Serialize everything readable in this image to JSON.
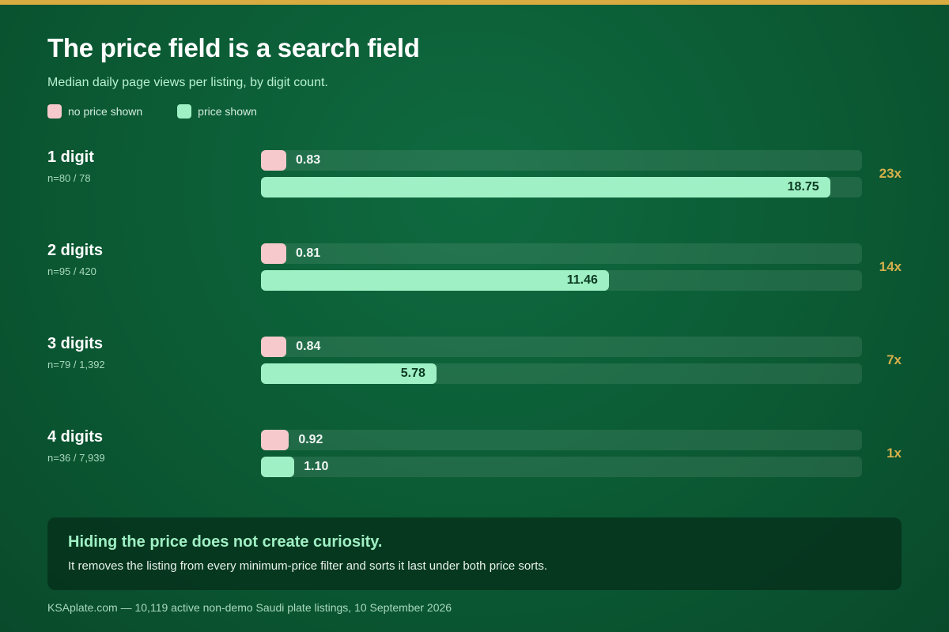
{
  "title": "The price field is a search field",
  "subtitle": "Median daily page views per listing, by digit count.",
  "legend": [
    {
      "label": "no price shown",
      "color": "#f6c9cd"
    },
    {
      "label": "price shown",
      "color": "#9ff0c4"
    }
  ],
  "chart_data": {
    "type": "bar",
    "orientation": "horizontal",
    "title": "The price field is a search field",
    "subtitle": "Median daily page views per listing, by digit count.",
    "categories": [
      "1 digit",
      "2 digits",
      "3 digits",
      "4 digits"
    ],
    "sample_sizes": [
      "n=80 / 78",
      "n=95 / 420",
      "n=79 / 1,392",
      "n=36 / 7,939"
    ],
    "series": [
      {
        "name": "no price shown",
        "color": "#f6c9cd",
        "values": [
          0.83,
          0.81,
          0.84,
          0.92
        ],
        "labels": [
          "0.83",
          "0.81",
          "0.84",
          "0.92"
        ]
      },
      {
        "name": "price shown",
        "color": "#9ff0c4",
        "values": [
          18.75,
          11.46,
          5.78,
          1.1
        ],
        "labels": [
          "18.75",
          "11.46",
          "5.78",
          "1.10"
        ]
      }
    ],
    "ratios": [
      "23x",
      "14x",
      "7x",
      "1x"
    ],
    "xlim": [
      0,
      19.8
    ],
    "legend_position": "top-left",
    "grid": false
  },
  "callout": {
    "heading": "Hiding the price does not create curiosity.",
    "body": "It removes the listing from every minimum-price filter and sorts it last under both price sorts."
  },
  "footer": "KSAplate.com — 10,119 active non-demo Saudi plate listings, 10 September 2026"
}
